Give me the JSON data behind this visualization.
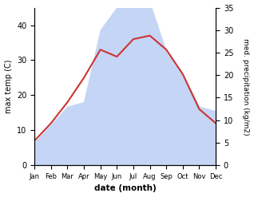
{
  "months": [
    "Jan",
    "Feb",
    "Mar",
    "Apr",
    "May",
    "Jun",
    "Jul",
    "Aug",
    "Sep",
    "Oct",
    "Nov",
    "Dec"
  ],
  "temp": [
    7,
    12,
    18,
    25,
    33,
    31,
    36,
    37,
    33,
    26,
    16,
    12
  ],
  "precip": [
    5,
    9,
    13,
    14,
    30,
    35,
    41,
    36,
    25,
    20,
    13,
    12
  ],
  "temp_color": "#cc3333",
  "precip_fill_color": "#c5d5f5",
  "ylabel_left": "max temp (C)",
  "ylabel_right": "med. precipitation (kg/m2)",
  "xlabel": "date (month)",
  "ylim_left": [
    0,
    45
  ],
  "ylim_right": [
    0,
    35
  ],
  "yticks_left": [
    0,
    10,
    20,
    30,
    40
  ],
  "yticks_right": [
    0,
    5,
    10,
    15,
    20,
    25,
    30,
    35
  ],
  "bg_color": "#ffffff"
}
